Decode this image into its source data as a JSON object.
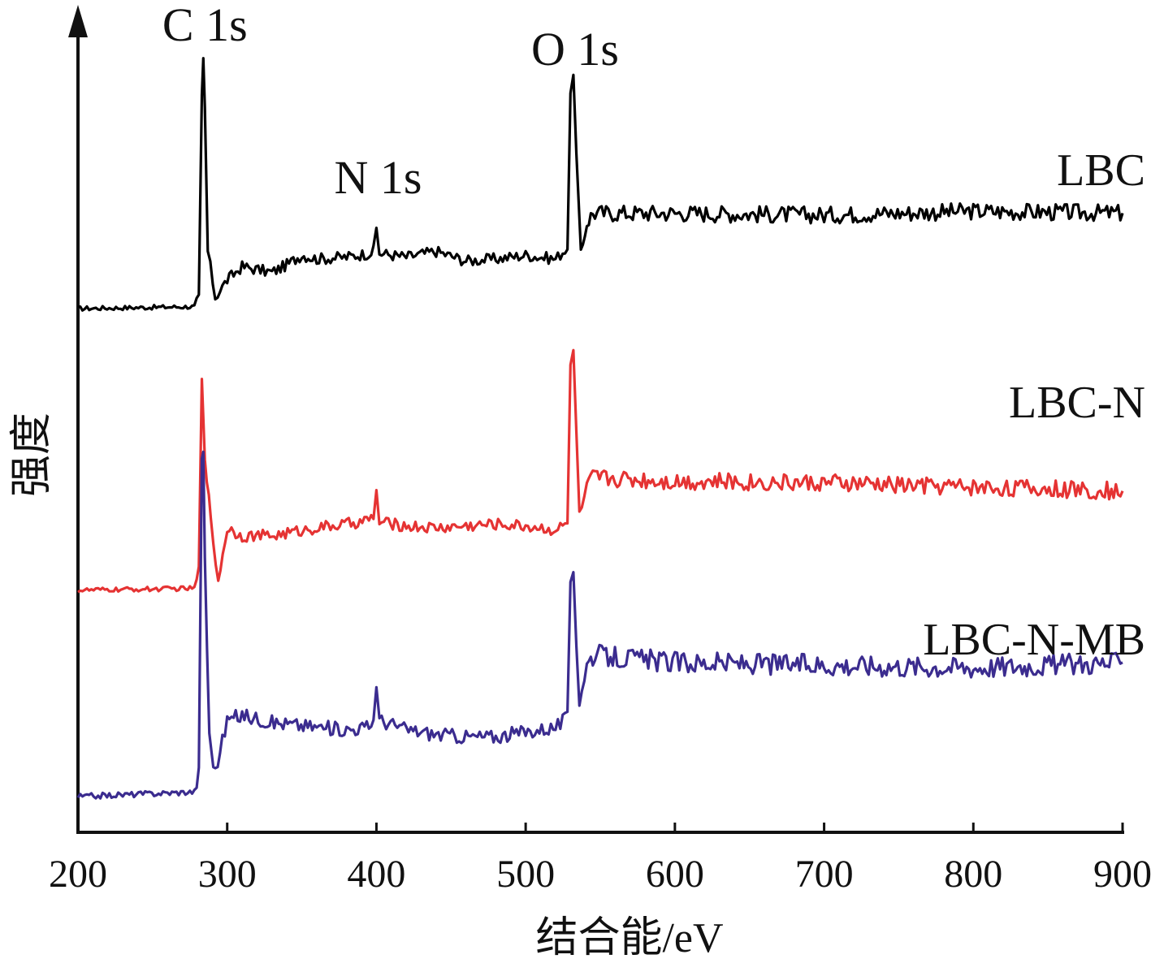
{
  "chart_data": {
    "type": "line",
    "title": "",
    "xlabel": "结合能/eV",
    "ylabel": "强度",
    "xlim": [
      200,
      900
    ],
    "xticks": [
      "200",
      "300",
      "400",
      "500",
      "600",
      "700",
      "800",
      "900"
    ],
    "yticks": "none",
    "grid": false,
    "legend": "inline labels at right end of each curve",
    "peak_annotations": [
      {
        "label": "C 1s",
        "x": 284
      },
      {
        "label": "N 1s",
        "x": 400
      },
      {
        "label": "O 1s",
        "x": 532
      }
    ],
    "series": [
      {
        "name": "LBC",
        "color": "#000000",
        "baseline_level": 5.5,
        "points": [
          [
            200,
            0.0
          ],
          [
            278,
            0.1
          ],
          [
            281,
            0.5
          ],
          [
            283,
            11.0
          ],
          [
            284,
            13.0
          ],
          [
            285,
            10.5
          ],
          [
            287,
            3.0
          ],
          [
            292,
            0.6
          ],
          [
            300,
            1.5
          ],
          [
            310,
            2.2
          ],
          [
            330,
            1.9
          ],
          [
            340,
            2.3
          ],
          [
            350,
            2.8
          ],
          [
            360,
            2.6
          ],
          [
            380,
            2.7
          ],
          [
            395,
            2.9
          ],
          [
            398,
            3.0
          ],
          [
            400,
            4.2
          ],
          [
            402,
            2.9
          ],
          [
            420,
            2.7
          ],
          [
            440,
            3.0
          ],
          [
            460,
            2.5
          ],
          [
            480,
            2.6
          ],
          [
            500,
            2.8
          ],
          [
            520,
            2.6
          ],
          [
            528,
            3.2
          ],
          [
            530,
            11.0
          ],
          [
            532,
            12.5
          ],
          [
            534,
            8.0
          ],
          [
            537,
            2.8
          ],
          [
            541,
            4.5
          ],
          [
            545,
            5.0
          ],
          [
            600,
            5.0
          ],
          [
            700,
            4.9
          ],
          [
            800,
            5.1
          ],
          [
            900,
            5.0
          ]
        ]
      },
      {
        "name": "LBC-N",
        "color": "#e53333",
        "baseline_level": 2.8,
        "points": [
          [
            200,
            0.0
          ],
          [
            278,
            0.1
          ],
          [
            281,
            1.0
          ],
          [
            283,
            11.0
          ],
          [
            285,
            7.0
          ],
          [
            289,
            3.5
          ],
          [
            294,
            0.5
          ],
          [
            300,
            3.2
          ],
          [
            310,
            2.8
          ],
          [
            330,
            2.8
          ],
          [
            360,
            3.2
          ],
          [
            380,
            3.4
          ],
          [
            395,
            3.6
          ],
          [
            398,
            3.8
          ],
          [
            400,
            5.0
          ],
          [
            402,
            3.5
          ],
          [
            420,
            3.3
          ],
          [
            440,
            3.2
          ],
          [
            460,
            3.3
          ],
          [
            480,
            3.4
          ],
          [
            500,
            3.3
          ],
          [
            520,
            3.1
          ],
          [
            528,
            3.4
          ],
          [
            530,
            11.5
          ],
          [
            532,
            12.5
          ],
          [
            534,
            8.0
          ],
          [
            536,
            3.8
          ],
          [
            541,
            5.2
          ],
          [
            545,
            5.8
          ],
          [
            600,
            5.6
          ],
          [
            700,
            5.5
          ],
          [
            800,
            5.3
          ],
          [
            900,
            5.1
          ]
        ]
      },
      {
        "name": "LBC-N-MB",
        "color": "#3b2c8f",
        "baseline_level": 0.0,
        "points": [
          [
            200,
            0.0
          ],
          [
            278,
            0.2
          ],
          [
            281,
            1.0
          ],
          [
            283,
            14.0
          ],
          [
            284,
            14.5
          ],
          [
            285,
            10.0
          ],
          [
            288,
            2.5
          ],
          [
            292,
            1.0
          ],
          [
            300,
            3.2
          ],
          [
            310,
            3.4
          ],
          [
            330,
            3.1
          ],
          [
            360,
            2.9
          ],
          [
            380,
            2.8
          ],
          [
            395,
            2.9
          ],
          [
            398,
            3.2
          ],
          [
            400,
            4.8
          ],
          [
            402,
            3.2
          ],
          [
            420,
            2.8
          ],
          [
            440,
            2.6
          ],
          [
            460,
            2.5
          ],
          [
            480,
            2.5
          ],
          [
            500,
            2.7
          ],
          [
            520,
            2.9
          ],
          [
            528,
            3.3
          ],
          [
            530,
            9.0
          ],
          [
            532,
            9.5
          ],
          [
            534,
            6.5
          ],
          [
            536,
            4.0
          ],
          [
            541,
            5.5
          ],
          [
            545,
            5.9
          ],
          [
            600,
            5.6
          ],
          [
            700,
            5.5
          ],
          [
            800,
            5.4
          ],
          [
            900,
            5.6
          ]
        ]
      }
    ]
  }
}
